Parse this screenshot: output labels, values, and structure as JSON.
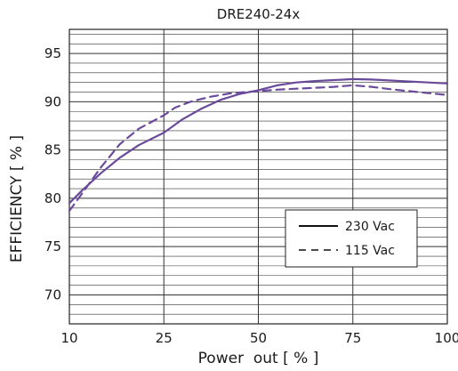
{
  "chart_data": {
    "type": "line",
    "title": "DRE240-24x",
    "xlabel": "Power  out [ % ]",
    "ylabel": "EFFICIENCY [ % ]",
    "x_categories": [
      "10",
      "25",
      "50",
      "75",
      "100"
    ],
    "ylim": [
      67,
      97.5
    ],
    "yticks": [
      70,
      75,
      80,
      85,
      90,
      95
    ],
    "grid": true,
    "legend_position": "bottom-right",
    "series": [
      {
        "name": "230 Vac",
        "style": "solid",
        "color": "#6a4a9a",
        "x": [
          10,
          12,
          15,
          18,
          21,
          25,
          30,
          35,
          40,
          45,
          50,
          55,
          60,
          65,
          70,
          75,
          80,
          85,
          90,
          95,
          100
        ],
        "y": [
          79.5,
          80.8,
          82.6,
          84.2,
          85.5,
          86.8,
          88.2,
          89.3,
          90.2,
          90.8,
          91.2,
          91.7,
          92.0,
          92.15,
          92.25,
          92.35,
          92.3,
          92.2,
          92.1,
          92.0,
          91.9
        ]
      },
      {
        "name": "115 Vac",
        "style": "dashed",
        "color": "#6a4a9a",
        "x": [
          10,
          12,
          15,
          18,
          21,
          25,
          28,
          32,
          37,
          43,
          50,
          55,
          60,
          65,
          70,
          75,
          80,
          85,
          90,
          95,
          100
        ],
        "y": [
          78.7,
          80.5,
          83.2,
          85.6,
          87.2,
          88.6,
          89.4,
          90.0,
          90.5,
          90.9,
          91.1,
          91.25,
          91.35,
          91.45,
          91.55,
          91.7,
          91.55,
          91.3,
          91.1,
          90.9,
          90.7
        ]
      }
    ]
  }
}
